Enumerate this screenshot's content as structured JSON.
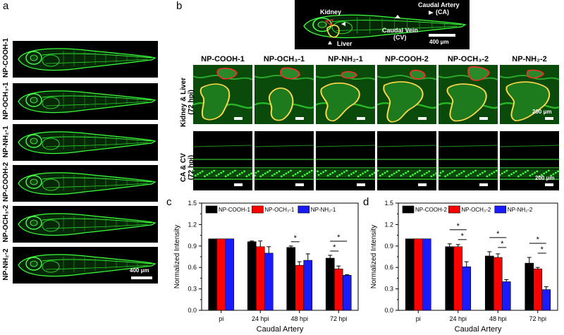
{
  "panels": {
    "a": "a",
    "b": "b",
    "c": "c",
    "d": "d"
  },
  "panel_a": {
    "labels": [
      "NP-COOH-1",
      "NP-OCH₃-1",
      "NP-NH₂-1",
      "NP-COOH-2",
      "NP-OCH₃-2",
      "NP-NH₂-2"
    ],
    "scalebar": "400 μm"
  },
  "overview": {
    "kidney": "Kidney",
    "liver": "Liver",
    "ca": "Caudal Artery",
    "ca2": "(CA)",
    "cv": "Caudal Vein",
    "cv2": "(CV)",
    "scalebar": "400 μm"
  },
  "panel_b": {
    "columns": [
      "NP-COOH-1",
      "NP-OCH₃-1",
      "NP-NH₂-1",
      "NP-COOH-2",
      "NP-OCH₃-2",
      "NP-NH₂-2"
    ],
    "row1_label": "Kidney & Liver",
    "row1_sub": "(72 hpi)",
    "row2_label": "CA & CV",
    "row2_sub": "(72 hpi)",
    "scale_row1": "200 μm",
    "scale_row2": "200 μm"
  },
  "colors": {
    "black": "#000000",
    "red": "#ff0000",
    "blue": "#1a1aff",
    "green": "#22dd22"
  },
  "chart_data": [
    {
      "type": "bar",
      "panel": "c",
      "categories": [
        "pi",
        "24 hpi",
        "48 hpi",
        "72 hpi"
      ],
      "series": [
        {
          "name": "NP-COOH-1",
          "color": "#000000",
          "values": [
            1.0,
            0.96,
            0.88,
            0.73
          ],
          "errors": [
            0,
            0.01,
            0.02,
            0.04
          ]
        },
        {
          "name": "NP-OCH₃-1",
          "color": "#ff0000",
          "values": [
            1.0,
            0.89,
            0.63,
            0.58
          ],
          "errors": [
            0,
            0.08,
            0.05,
            0.04
          ]
        },
        {
          "name": "NP-NH₂-1",
          "color": "#1a1aff",
          "values": [
            1.0,
            0.8,
            0.7,
            0.49
          ],
          "errors": [
            0,
            0.09,
            0.09,
            0.01
          ]
        }
      ],
      "significance": [
        {
          "category": "48 hpi",
          "from": 0,
          "to": 1,
          "level": 1,
          "label": "*"
        },
        {
          "category": "72 hpi",
          "from": 0,
          "to": 1,
          "level": 1,
          "label": "*"
        },
        {
          "category": "72 hpi",
          "from": 0,
          "to": 2,
          "level": 2,
          "label": "*"
        }
      ],
      "ylabel": "Normalized Intensity",
      "xlabel": "Caudal Artery",
      "ylim": [
        0,
        1.5
      ],
      "yticks": [
        "0.0",
        "0.3",
        "0.6",
        "0.9",
        "1.2",
        "1.5"
      ],
      "legend_labels": [
        "NP-COOH-1",
        "NP-OCH₃-1",
        "NP-NH₂-1"
      ]
    },
    {
      "type": "bar",
      "panel": "d",
      "categories": [
        "pi",
        "24 hpi",
        "48 hpi",
        "72 hpi"
      ],
      "series": [
        {
          "name": "NP-COOH-2",
          "color": "#000000",
          "values": [
            1.0,
            0.89,
            0.76,
            0.66
          ],
          "errors": [
            0,
            0.04,
            0.06,
            0.08
          ]
        },
        {
          "name": "NP-OCH₃-2",
          "color": "#ff0000",
          "values": [
            1.0,
            0.89,
            0.74,
            0.58
          ],
          "errors": [
            0,
            0.03,
            0.05,
            0.02
          ]
        },
        {
          "name": "NP-NH₂-2",
          "color": "#1a1aff",
          "values": [
            1.0,
            0.61,
            0.4,
            0.29
          ],
          "errors": [
            0,
            0.07,
            0.03,
            0.04
          ]
        }
      ],
      "significance": [
        {
          "category": "24 hpi",
          "from": 0,
          "to": 2,
          "level": 2,
          "label": "*"
        },
        {
          "category": "24 hpi",
          "from": 1,
          "to": 2,
          "level": 1,
          "label": "*"
        },
        {
          "category": "48 hpi",
          "from": 0,
          "to": 2,
          "level": 2,
          "label": "*"
        },
        {
          "category": "48 hpi",
          "from": 1,
          "to": 2,
          "level": 1,
          "label": "*"
        },
        {
          "category": "72 hpi",
          "from": 0,
          "to": 2,
          "level": 2,
          "label": "*"
        },
        {
          "category": "72 hpi",
          "from": 1,
          "to": 2,
          "level": 1,
          "label": "*"
        }
      ],
      "ylabel": "Normalized Intensity",
      "xlabel": "Caudal Artery",
      "ylim": [
        0,
        1.5
      ],
      "yticks": [
        "0.0",
        "0.3",
        "0.6",
        "0.9",
        "1.2",
        "1.5"
      ],
      "legend_labels": [
        "NP-COOH-2",
        "NP-OCH₃-2",
        "NP-NH₂-2"
      ]
    }
  ]
}
